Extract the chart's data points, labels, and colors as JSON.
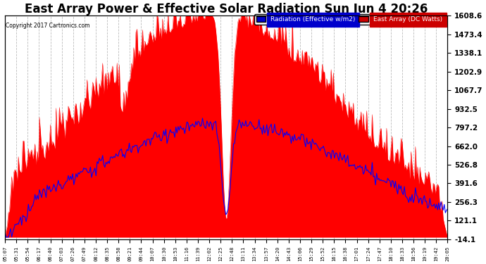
{
  "title": "East Array Power & Effective Solar Radiation Sun Jun 4 20:26",
  "copyright": "Copyright 2017 Cartronics.com",
  "legend_labels": [
    "Radiation (Effective w/m2)",
    "East Array (DC Watts)"
  ],
  "legend_bg_colors": [
    "#0000cc",
    "#cc0000"
  ],
  "yticks_right": [
    -14.1,
    121.1,
    256.3,
    391.6,
    526.8,
    662.0,
    797.2,
    932.5,
    1067.7,
    1202.9,
    1338.1,
    1473.4,
    1608.6
  ],
  "ytick_labels_right": [
    "-14.1",
    "121.1",
    "256.3",
    "391.6",
    "526.8",
    "662.0",
    "797.2",
    "932.5",
    "1067.7",
    "1202.9",
    "1338.1",
    "1473.4",
    "1608.6"
  ],
  "ymin": -14.1,
  "ymax": 1608.6,
  "background_color": "#ffffff",
  "grid_color": "#cccccc",
  "title_fontsize": 12,
  "xtick_labels": [
    "05:07",
    "05:31",
    "05:54",
    "06:17",
    "06:40",
    "07:03",
    "07:26",
    "07:49",
    "08:12",
    "08:35",
    "08:58",
    "09:21",
    "09:44",
    "10:07",
    "10:30",
    "10:53",
    "11:16",
    "11:39",
    "12:02",
    "12:25",
    "12:48",
    "13:11",
    "13:34",
    "13:57",
    "14:20",
    "14:43",
    "15:06",
    "15:29",
    "15:52",
    "16:15",
    "16:38",
    "17:01",
    "17:24",
    "17:47",
    "18:10",
    "18:33",
    "18:56",
    "19:19",
    "19:42",
    "20:05"
  ]
}
